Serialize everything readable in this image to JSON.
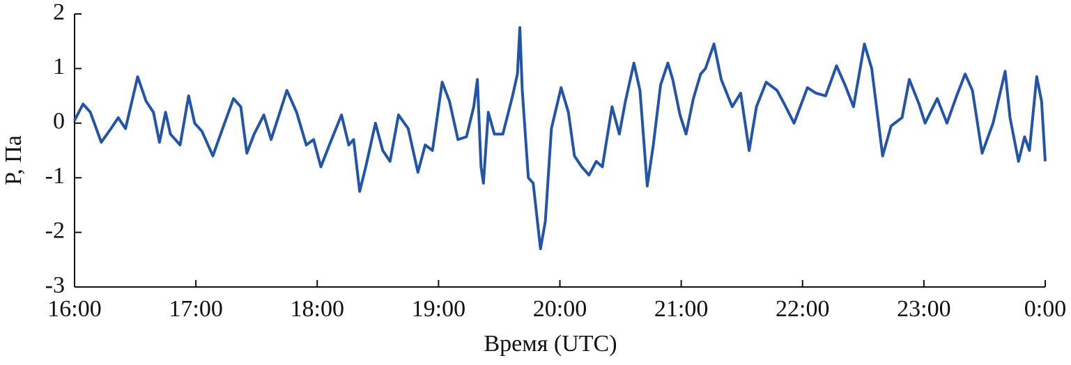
{
  "chart_data": {
    "type": "line",
    "x_label": "Время (UTC)",
    "y_label": "P, Па",
    "xlim": [
      16,
      24
    ],
    "ylim": [
      -3,
      2
    ],
    "xticks": [
      {
        "value": 16,
        "label": "16:00"
      },
      {
        "value": 17,
        "label": "17:00"
      },
      {
        "value": 18,
        "label": "18:00"
      },
      {
        "value": 19,
        "label": "19:00"
      },
      {
        "value": 20,
        "label": "20:00"
      },
      {
        "value": 21,
        "label": "21:00"
      },
      {
        "value": 22,
        "label": "22:00"
      },
      {
        "value": 23,
        "label": "23:00"
      },
      {
        "value": 24,
        "label": "0:00"
      }
    ],
    "yticks": [
      -3,
      -2,
      -1,
      0,
      1,
      2
    ],
    "x": [
      16.0,
      16.07,
      16.13,
      16.22,
      16.3,
      16.36,
      16.42,
      16.52,
      16.59,
      16.65,
      16.7,
      16.75,
      16.79,
      16.87,
      16.94,
      16.99,
      17.05,
      17.14,
      17.22,
      17.31,
      17.37,
      17.42,
      17.48,
      17.56,
      17.62,
      17.75,
      17.83,
      17.91,
      17.97,
      18.03,
      18.1,
      18.2,
      18.26,
      18.3,
      18.35,
      18.4,
      18.48,
      18.54,
      18.6,
      18.67,
      18.75,
      18.83,
      18.89,
      18.95,
      19.03,
      19.09,
      19.16,
      19.23,
      19.29,
      19.32,
      19.35,
      19.37,
      19.41,
      19.46,
      19.53,
      19.61,
      19.65,
      19.67,
      19.69,
      19.74,
      19.78,
      19.84,
      19.88,
      19.93,
      20.01,
      20.07,
      20.12,
      20.18,
      20.24,
      20.3,
      20.35,
      20.43,
      20.49,
      20.54,
      20.61,
      20.66,
      20.72,
      20.77,
      20.83,
      20.89,
      20.93,
      20.99,
      21.04,
      21.1,
      21.16,
      21.2,
      21.27,
      21.33,
      21.42,
      21.49,
      21.56,
      21.62,
      21.7,
      21.79,
      21.85,
      21.93,
      22.04,
      22.11,
      22.19,
      22.28,
      22.35,
      22.42,
      22.51,
      22.57,
      22.66,
      22.73,
      22.82,
      22.88,
      22.96,
      23.01,
      23.11,
      23.19,
      23.27,
      23.34,
      23.4,
      23.48,
      23.57,
      23.67,
      23.71,
      23.78,
      23.83,
      23.87,
      23.93,
      23.97,
      24.0
    ],
    "series": [
      {
        "color": "#2255a8",
        "values": [
          0.05,
          0.35,
          0.2,
          -0.35,
          -0.1,
          0.1,
          -0.1,
          0.85,
          0.4,
          0.2,
          -0.35,
          0.2,
          -0.2,
          -0.4,
          0.5,
          0.0,
          -0.15,
          -0.6,
          -0.1,
          0.45,
          0.3,
          -0.55,
          -0.2,
          0.15,
          -0.3,
          0.6,
          0.2,
          -0.4,
          -0.3,
          -0.8,
          -0.4,
          0.15,
          -0.4,
          -0.3,
          -1.25,
          -0.8,
          0.0,
          -0.5,
          -0.7,
          0.15,
          -0.1,
          -0.9,
          -0.4,
          -0.5,
          0.75,
          0.4,
          -0.3,
          -0.25,
          0.3,
          0.8,
          -0.8,
          -1.1,
          0.2,
          -0.2,
          -0.2,
          0.5,
          0.9,
          1.75,
          0.6,
          -1.0,
          -1.1,
          -2.3,
          -1.8,
          -0.1,
          0.65,
          0.2,
          -0.6,
          -0.8,
          -0.95,
          -0.7,
          -0.8,
          0.3,
          -0.2,
          0.4,
          1.1,
          0.6,
          -1.15,
          -0.4,
          0.7,
          1.1,
          0.8,
          0.15,
          -0.2,
          0.45,
          0.9,
          1.0,
          1.45,
          0.8,
          0.3,
          0.55,
          -0.5,
          0.3,
          0.75,
          0.6,
          0.35,
          0.0,
          0.65,
          0.55,
          0.5,
          1.05,
          0.7,
          0.3,
          1.45,
          1.0,
          -0.6,
          -0.05,
          0.1,
          0.8,
          0.35,
          0.0,
          0.45,
          0.0,
          0.5,
          0.9,
          0.6,
          -0.55,
          0.0,
          0.95,
          0.1,
          -0.7,
          -0.25,
          -0.5,
          0.85,
          0.4,
          -0.7
        ]
      }
    ]
  }
}
